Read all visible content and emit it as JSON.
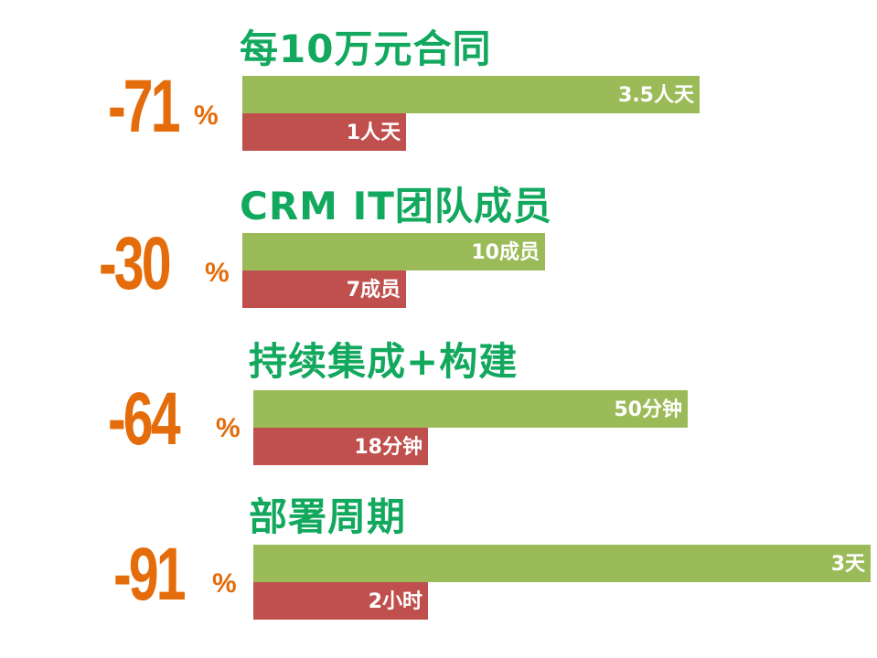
{
  "colors": {
    "before": "#9bbb59",
    "after": "#c0504d",
    "title": "#12a85e",
    "percent": "#e46c0a"
  },
  "chart_data": {
    "type": "bar",
    "groups": [
      {
        "title": "每10万元合同",
        "change": "-71",
        "unit": "%",
        "before": {
          "value": 3.5,
          "label": "3.5人天"
        },
        "after": {
          "value": 1,
          "label": "1人天"
        }
      },
      {
        "title": "CRM IT团队成员",
        "change": "-30",
        "unit": "%",
        "before": {
          "value": 10,
          "label": "10成员"
        },
        "after": {
          "value": 7,
          "label": "7成员"
        }
      },
      {
        "title": "持续集成+构建",
        "change": "-64",
        "unit": "%",
        "before": {
          "value": 50,
          "label": "50分钟"
        },
        "after": {
          "value": 18,
          "label": "18分钟"
        }
      },
      {
        "title": "部署周期",
        "change": "-91",
        "unit": "%",
        "before": {
          "value": 3,
          "label": "3天"
        },
        "after": {
          "value": 2,
          "label": "2小时"
        }
      }
    ]
  }
}
